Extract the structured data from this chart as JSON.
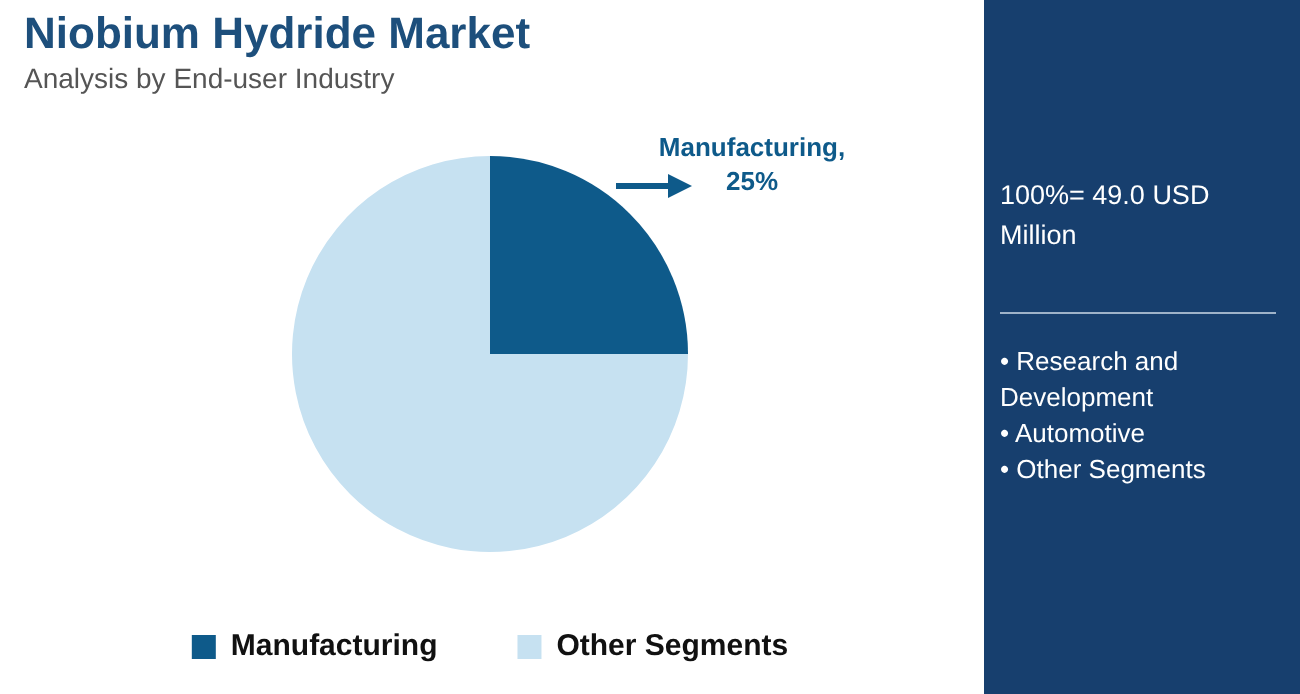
{
  "chart_data": {
    "type": "pie",
    "title": "Niobium Hydride Market",
    "subtitle": "Analysis by End-user Industry",
    "categories": [
      "Manufacturing",
      "Other Segments"
    ],
    "values": [
      25,
      75
    ],
    "colors": [
      "#0e5a8a",
      "#c6e1f1"
    ],
    "value_labels": [
      "Manufacturing, 25%",
      null
    ],
    "legend": "bottom",
    "annotations": [
      "100%= 49.0 USD Million",
      "• Research and Development",
      "• Automotive",
      "• Other Segments"
    ]
  }
}
